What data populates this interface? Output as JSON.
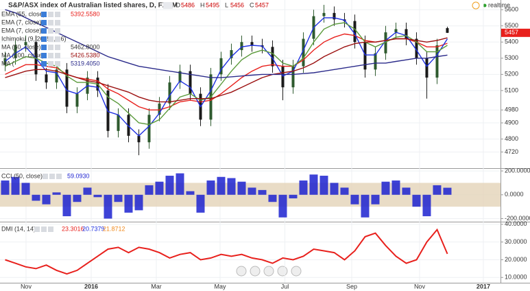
{
  "status": "realtime",
  "chart_data": [
    {
      "type": "candlestick",
      "title": "S&P/ASX index of Australian listed shares, D, FXCM",
      "ohlc_labels": [
        "O",
        "H",
        "L",
        "C"
      ],
      "up_color": "#2e5a2e",
      "down_color": "#1a1a1a",
      "open": [
        5260,
        5300,
        5380,
        5400,
        5200,
        5150,
        5230,
        5000,
        5080,
        5180,
        5100,
        4850,
        4950,
        4820,
        4780,
        4950,
        5020,
        5150,
        5220,
        5080,
        4920,
        5200,
        5300,
        5350,
        5400,
        5380,
        5370,
        5250,
        5120,
        5250,
        5420,
        5560,
        5580,
        5540,
        5530,
        5400,
        5230,
        5330,
        5460,
        5480,
        5420,
        5300,
        5180,
        5486
      ],
      "high": [
        5340,
        5420,
        5440,
        5440,
        5240,
        5270,
        5270,
        5120,
        5220,
        5220,
        5140,
        4990,
        4990,
        4860,
        4990,
        5060,
        5190,
        5260,
        5260,
        5120,
        5240,
        5340,
        5390,
        5440,
        5440,
        5420,
        5410,
        5290,
        5290,
        5460,
        5600,
        5630,
        5620,
        5580,
        5570,
        5440,
        5370,
        5500,
        5520,
        5520,
        5460,
        5340,
        5420,
        5495
      ],
      "low": [
        5220,
        5260,
        5340,
        5160,
        5110,
        5110,
        4960,
        4960,
        5040,
        5060,
        4810,
        4810,
        4780,
        4700,
        4740,
        4910,
        4980,
        5110,
        5040,
        4880,
        4880,
        5160,
        5260,
        5310,
        5340,
        5330,
        5210,
        5040,
        5080,
        5210,
        5380,
        5520,
        5500,
        5490,
        5360,
        5180,
        5190,
        5290,
        5420,
        5380,
        5260,
        5050,
        5140,
        5456
      ],
      "close": [
        5300,
        5380,
        5400,
        5200,
        5150,
        5230,
        5000,
        5080,
        5180,
        5100,
        4850,
        4950,
        4820,
        4780,
        4950,
        5020,
        5150,
        5220,
        5080,
        4920,
        5200,
        5300,
        5350,
        5400,
        5380,
        5370,
        5250,
        5120,
        5250,
        5420,
        5560,
        5580,
        5540,
        5530,
        5400,
        5230,
        5330,
        5460,
        5480,
        5420,
        5300,
        5180,
        5380,
        5457
      ],
      "series": [
        {
          "name": "EMA (55, close)",
          "color": "#e8201c",
          "value_label": "5392.5580",
          "values": [
            5200,
            5230,
            5260,
            5260,
            5250,
            5240,
            5200,
            5180,
            5170,
            5160,
            5110,
            5080,
            5040,
            5000,
            4980,
            4980,
            5000,
            5030,
            5040,
            5030,
            5040,
            5080,
            5130,
            5180,
            5220,
            5250,
            5260,
            5250,
            5250,
            5290,
            5350,
            5400,
            5430,
            5450,
            5440,
            5410,
            5400,
            5410,
            5420,
            5420,
            5400,
            5370,
            5370,
            5392
          ]
        },
        {
          "name": "EMA (7, close)",
          "color": "#1c2ee0",
          "values": [
            5280,
            5330,
            5370,
            5300,
            5220,
            5210,
            5100,
            5080,
            5130,
            5120,
            4970,
            4950,
            4880,
            4820,
            4880,
            4960,
            5070,
            5160,
            5120,
            5000,
            5100,
            5230,
            5310,
            5370,
            5380,
            5375,
            5300,
            5190,
            5220,
            5350,
            5490,
            5550,
            5550,
            5535,
            5450,
            5320,
            5320,
            5410,
            5460,
            5440,
            5350,
            5250,
            5320,
            5420
          ]
        },
        {
          "name": "EMA (7, close)",
          "color": "#5a9a3a",
          "values": [
            5250,
            5280,
            5310,
            5300,
            5270,
            5250,
            5190,
            5150,
            5150,
            5140,
            5060,
            5020,
            4960,
            4900,
            4890,
            4920,
            4990,
            5060,
            5080,
            5040,
            5060,
            5140,
            5220,
            5290,
            5330,
            5350,
            5330,
            5270,
            5250,
            5300,
            5400,
            5480,
            5510,
            5520,
            5480,
            5400,
            5370,
            5400,
            5430,
            5440,
            5400,
            5340,
            5340,
            5380
          ]
        },
        {
          "name": "Ichimoku (9, 26, 52, 26)",
          "color": "#888888"
        },
        {
          "name": "MA (50, close)",
          "color": "#333333",
          "value_label": "5462.8000"
        },
        {
          "name": "MA (100, close)",
          "color": "#9b1010",
          "value_label": "5426.5380",
          "values": [
            5180,
            5200,
            5220,
            5230,
            5230,
            5220,
            5200,
            5180,
            5160,
            5150,
            5130,
            5110,
            5090,
            5060,
            5040,
            5030,
            5030,
            5040,
            5050,
            5050,
            5050,
            5070,
            5090,
            5120,
            5150,
            5180,
            5200,
            5210,
            5220,
            5240,
            5270,
            5310,
            5340,
            5370,
            5390,
            5400,
            5400,
            5410,
            5420,
            5420,
            5410,
            5400,
            5410,
            5426
          ]
        },
        {
          "name": "MA (",
          "color": "#2a2a8a",
          "value_label": "5319.4050",
          "values": [
            5600,
            5580,
            5550,
            5520,
            5490,
            5460,
            5430,
            5400,
            5370,
            5340,
            5310,
            5290,
            5270,
            5250,
            5240,
            5230,
            5220,
            5210,
            5200,
            5190,
            5180,
            5180,
            5185,
            5190,
            5195,
            5200,
            5200,
            5200,
            5200,
            5205,
            5210,
            5220,
            5230,
            5240,
            5250,
            5260,
            5270,
            5270,
            5280,
            5290,
            5300,
            5300,
            5310,
            5319
          ]
        }
      ],
      "ylim": [
        4620,
        5660
      ],
      "yticks": [
        5600,
        5500,
        5400,
        5300,
        5200,
        5100,
        4980,
        4900,
        4800,
        4720
      ]
    },
    {
      "type": "bar",
      "title": "CCI (50, close)",
      "value_label": "59.0930",
      "color": "#1c22d0",
      "band": [
        -100,
        100
      ],
      "band_color": "#e3d3b8",
      "values": [
        120,
        150,
        100,
        -50,
        -80,
        20,
        -180,
        -60,
        60,
        -20,
        -200,
        -60,
        -150,
        -130,
        80,
        110,
        160,
        180,
        30,
        -150,
        120,
        150,
        140,
        110,
        60,
        40,
        -60,
        -190,
        -30,
        120,
        170,
        160,
        100,
        60,
        -80,
        -190,
        -80,
        110,
        120,
        60,
        -100,
        -180,
        80,
        59.093
      ],
      "ylim": [
        -220,
        212
      ],
      "yticks": [
        {
          "value": 200,
          "label": "200.0000"
        },
        {
          "value": 0,
          "label": "0.0000"
        },
        {
          "value": -200,
          "label": "-200.0000"
        }
      ]
    },
    {
      "type": "line",
      "title": "DMI (14, 14)",
      "value_labels": [
        {
          "text": "23.3016",
          "color": "#e8201c"
        },
        {
          "text": "20.7379",
          "color": "#1c2ee0"
        },
        {
          "text": "21.8712",
          "color": "#f08a1c"
        }
      ],
      "series": [
        {
          "color": "#e8201c",
          "values": [
            20,
            18,
            16,
            15,
            17,
            14,
            12,
            14,
            18,
            22,
            26,
            27,
            24,
            27,
            26,
            24,
            21,
            23,
            24,
            20,
            21,
            23,
            22,
            23,
            21,
            20,
            18,
            21,
            20,
            22,
            26,
            25,
            24,
            20,
            25,
            33,
            35,
            28,
            22,
            18,
            20,
            30,
            37,
            23.3016
          ]
        }
      ],
      "ylim": [
        7,
        41.1
      ],
      "yticks": [
        {
          "value": 40,
          "label": "40.0000"
        },
        {
          "value": 30,
          "label": "30.0000"
        },
        {
          "value": 20,
          "label": "20.0000"
        },
        {
          "value": 10,
          "label": "10.0000"
        }
      ],
      "xlim": [
        -0.5,
        48.17
      ],
      "xticks": [
        {
          "value": 2.03,
          "label": "Nov"
        },
        {
          "value": 8.37,
          "label": "2016"
        },
        {
          "value": 14.7,
          "label": "Mar"
        },
        {
          "value": 20.9,
          "label": "May"
        },
        {
          "value": 27.2,
          "label": "Jul"
        },
        {
          "value": 33.7,
          "label": "Sep"
        },
        {
          "value": 40.3,
          "label": "Nov"
        },
        {
          "value": 46.5,
          "label": "2017"
        }
      ]
    }
  ]
}
